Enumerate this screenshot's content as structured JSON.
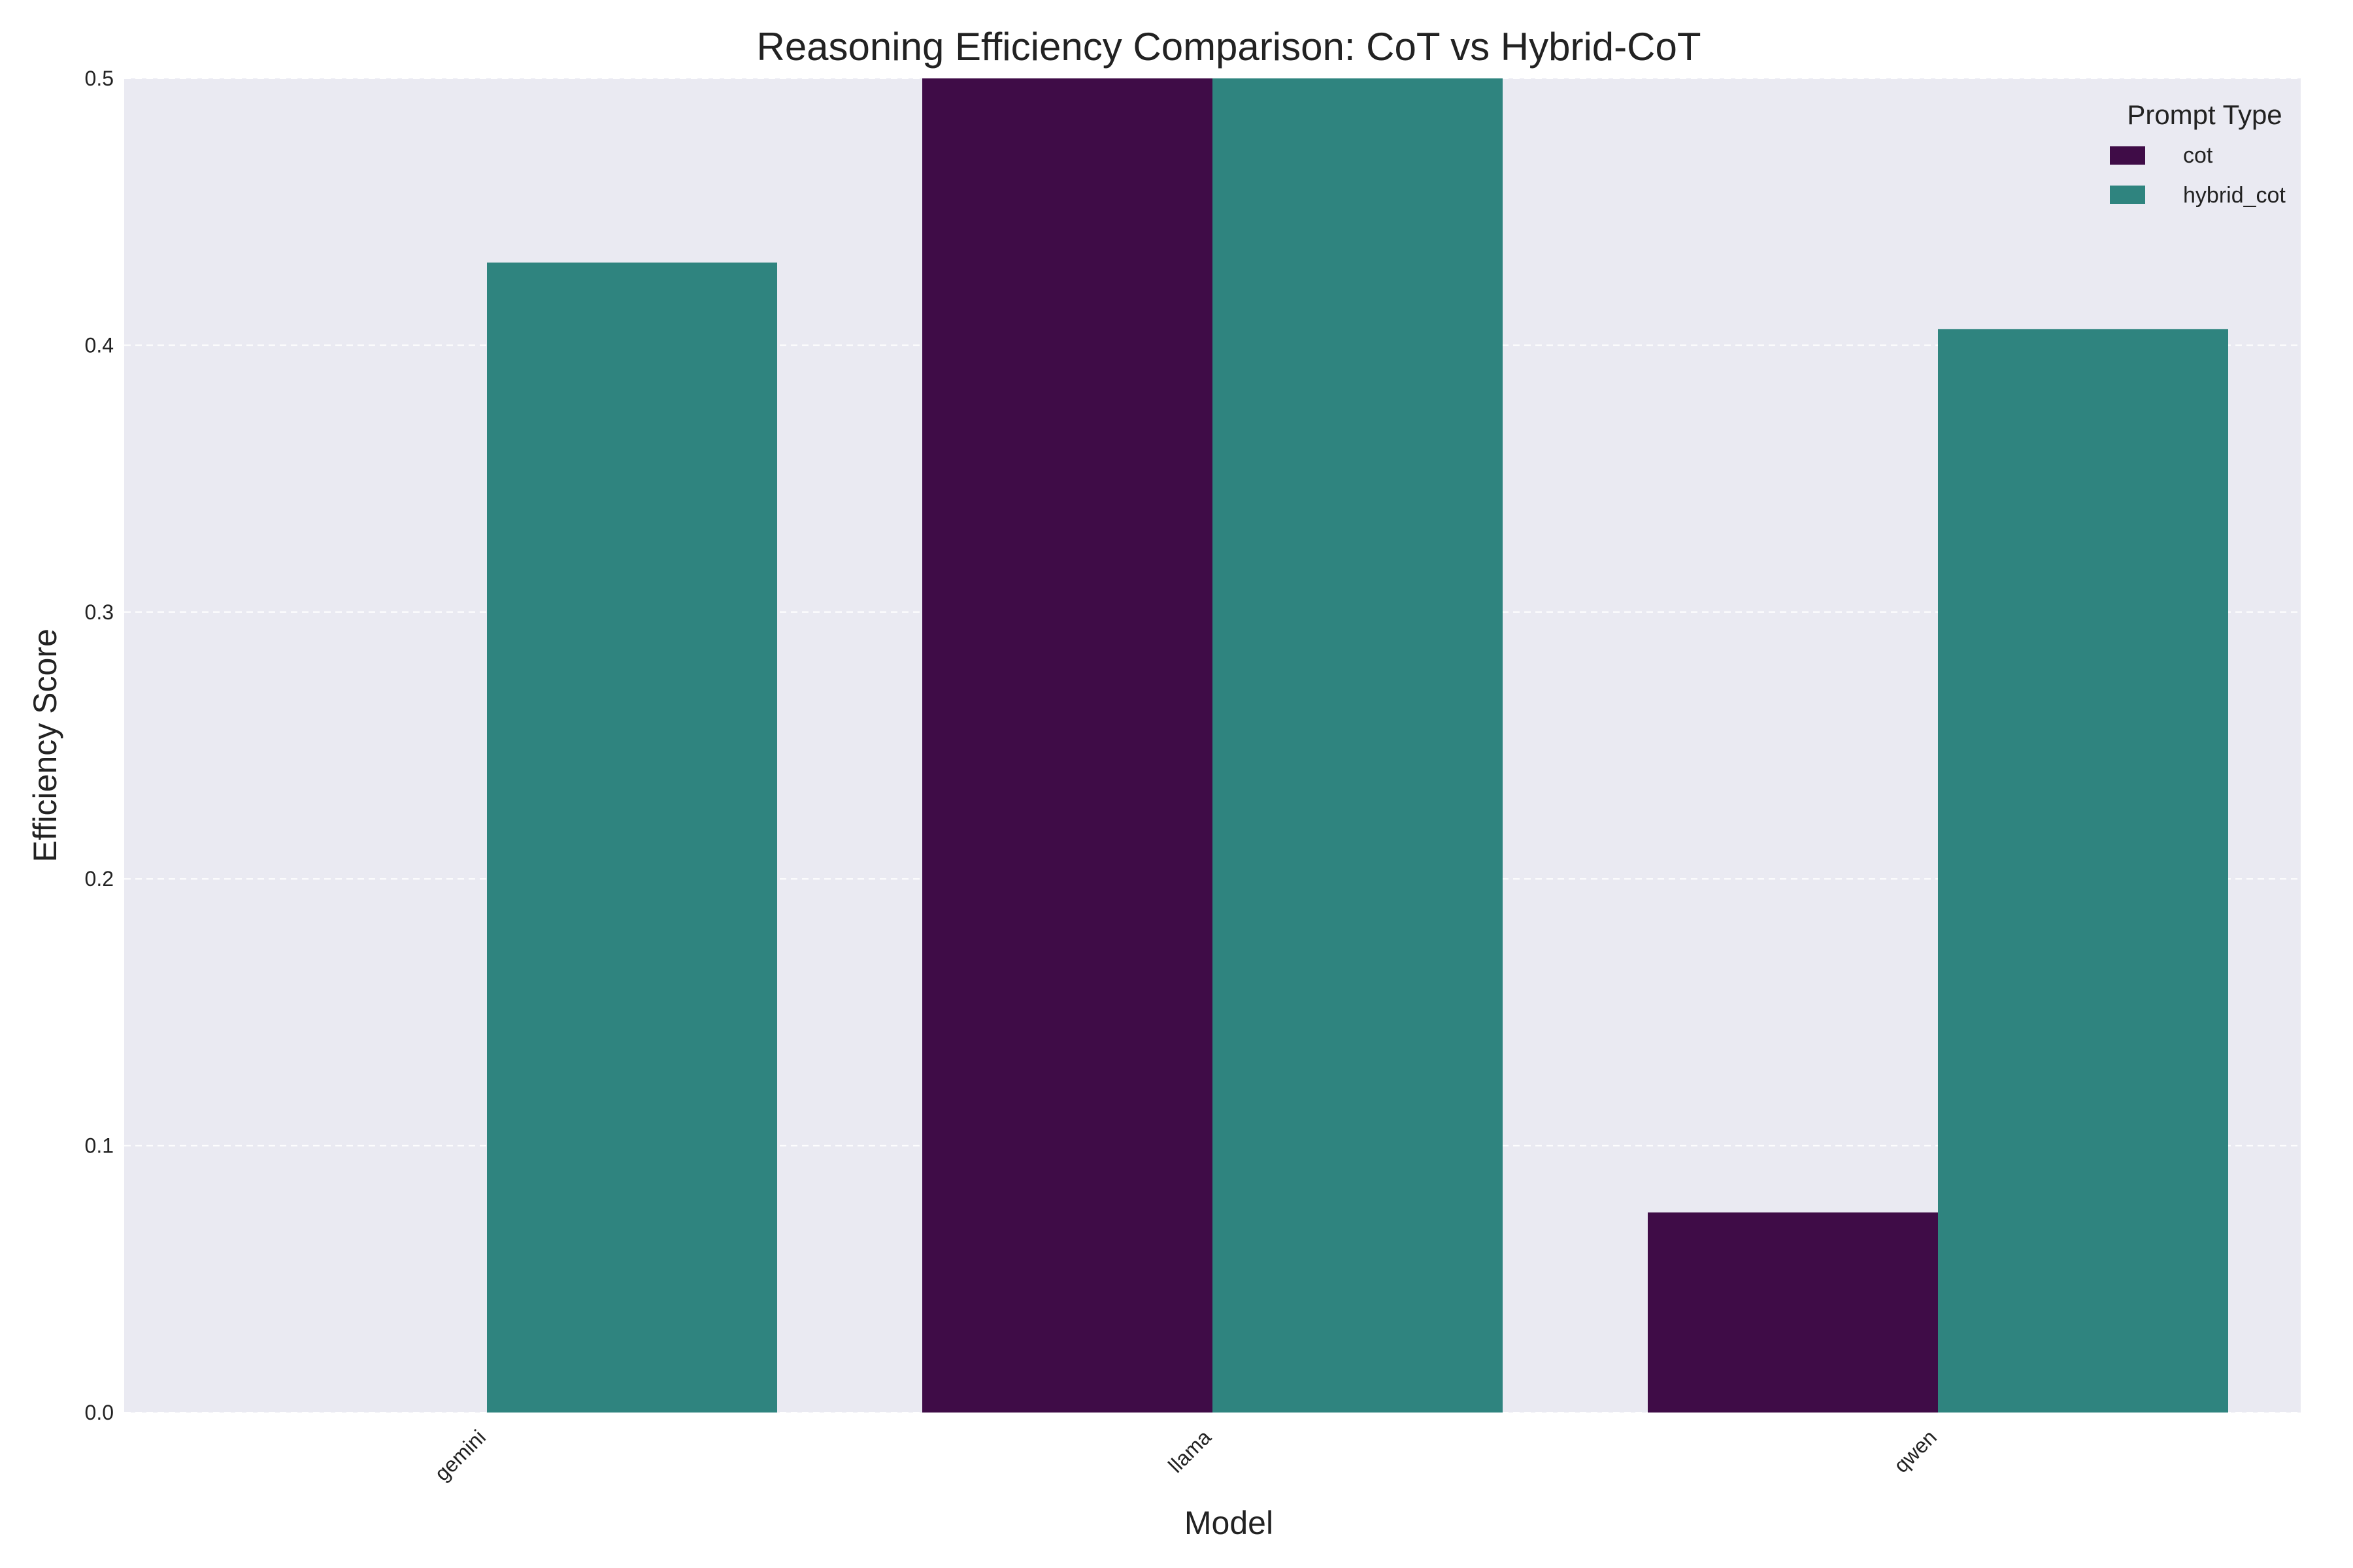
{
  "chart_data": {
    "type": "bar",
    "title": "Reasoning Efficiency Comparison: CoT vs Hybrid-CoT",
    "xlabel": "Model",
    "ylabel": "Efficiency Score",
    "categories": [
      "gemini",
      "llama",
      "qwen"
    ],
    "series": [
      {
        "name": "cot",
        "color": "#3f0c47",
        "values": [
          0.0,
          0.5,
          0.075
        ]
      },
      {
        "name": "hybrid_cot",
        "color": "#2f847f",
        "values": [
          0.431,
          0.5,
          0.406
        ]
      }
    ],
    "ylim": [
      0,
      0.5
    ],
    "yticks": [
      "0.0",
      "0.1",
      "0.2",
      "0.3",
      "0.4",
      "0.5"
    ],
    "grid": true,
    "legend": {
      "title": "Prompt Type",
      "placement": "top-right"
    }
  }
}
